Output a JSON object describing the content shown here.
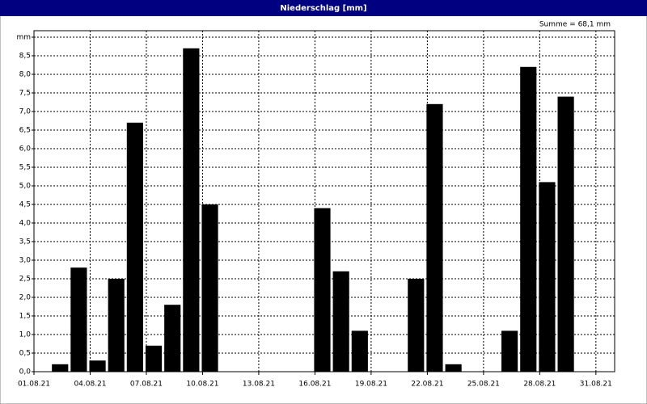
{
  "chart_data": {
    "type": "histogram",
    "title": "Niederschlag [mm]",
    "annotation": "Summe = 68,1 mm",
    "bins": [
      1,
      2,
      3,
      4,
      5,
      6,
      7,
      8,
      9,
      10,
      11,
      12,
      13,
      14,
      15,
      16,
      17,
      18,
      19,
      20,
      21,
      22,
      23,
      24,
      25,
      26,
      27,
      28,
      29,
      30,
      31,
      32
    ],
    "values": [
      0,
      0.2,
      2.8,
      0.3,
      2.5,
      6.7,
      0.7,
      1.8,
      8.7,
      4.5,
      0,
      0,
      0,
      0,
      0,
      4.4,
      2.7,
      1.1,
      0,
      0,
      2.5,
      7.2,
      0.2,
      0,
      0,
      1.1,
      8.2,
      5.1,
      7.4,
      0,
      0
    ],
    "color": "#000000",
    "xlim": [
      1,
      32
    ],
    "xticks": [
      {
        "value": 1,
        "label": "01.08.21"
      },
      {
        "value": 4,
        "label": "04.08.21"
      },
      {
        "value": 7,
        "label": "07.08.21"
      },
      {
        "value": 10,
        "label": "10.08.21"
      },
      {
        "value": 13,
        "label": "13.08.21"
      },
      {
        "value": 16,
        "label": "16.08.21"
      },
      {
        "value": 19,
        "label": "19.08.21"
      },
      {
        "value": 22,
        "label": "22.08.21"
      },
      {
        "value": 25,
        "label": "25.08.21"
      },
      {
        "value": 28,
        "label": "28.08.21"
      },
      {
        "value": 31,
        "label": "31.08.21"
      }
    ],
    "ylim": [
      0,
      9
    ],
    "yticks": [
      {
        "value": 0,
        "label": "0,0"
      },
      {
        "value": 0.5,
        "label": "0,5"
      },
      {
        "value": 1,
        "label": "1,0"
      },
      {
        "value": 1.5,
        "label": "1,5"
      },
      {
        "value": 2,
        "label": "2,0"
      },
      {
        "value": 2.5,
        "label": "2,5"
      },
      {
        "value": 3,
        "label": "3,0"
      },
      {
        "value": 3.5,
        "label": "3,5"
      },
      {
        "value": 4,
        "label": "4,0"
      },
      {
        "value": 4.5,
        "label": "4,5"
      },
      {
        "value": 5,
        "label": "5,0"
      },
      {
        "value": 5.5,
        "label": "5,5"
      },
      {
        "value": 6,
        "label": "6,0"
      },
      {
        "value": 6.5,
        "label": "6,5"
      },
      {
        "value": 7,
        "label": "7,0"
      },
      {
        "value": 7.5,
        "label": "7,5"
      },
      {
        "value": 8,
        "label": "8,0"
      },
      {
        "value": 8.5,
        "label": "8,5"
      },
      {
        "value": 9,
        "label": "mm"
      }
    ],
    "grid": true
  }
}
